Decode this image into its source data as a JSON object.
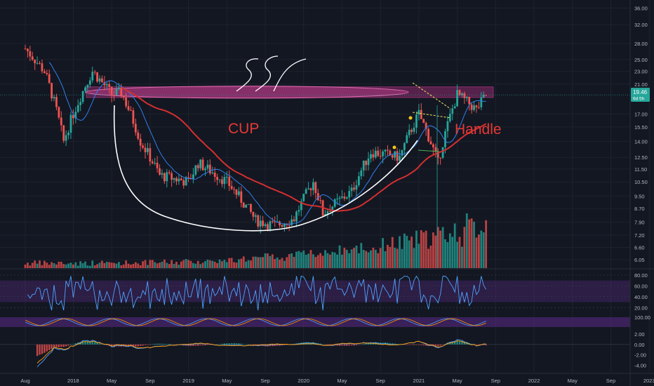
{
  "colors": {
    "background": "#131722",
    "grid": "#1e222d",
    "up": "#26a69a",
    "down": "#ef5350",
    "resistance_zone": "#8e2a6b",
    "ma_fast": "#2f80ed",
    "ma_slow": "#d32f2f",
    "annotation_white": "#ffffff",
    "annotation_red": "#e53935",
    "handle_lines": "#f5e663",
    "indicator_band": "#5b2a86",
    "last_price_bg": "#26a69a"
  },
  "annotations": {
    "cup_label": "CUP",
    "handle_label": "Handle"
  },
  "price_tag": {
    "price": "19.46",
    "countdown": "6d 5h"
  },
  "chart_data": [
    {
      "type": "candlestick",
      "panel": "price",
      "x": [
        "Aug",
        "2018",
        "May",
        "Sep",
        "2019",
        "May",
        "Sep",
        "2020",
        "May",
        "Sep",
        "2021",
        "May",
        "Sep",
        "2022",
        "May",
        "Sep",
        "2023",
        "May"
      ],
      "ylim": [
        5.7,
        37
      ],
      "scale": "log",
      "y_ticks": [
        "36.00",
        "32.00",
        "28.00",
        "25.00",
        "23.00",
        "21.00",
        "17.00",
        "15.50",
        "14.00",
        "12.50",
        "11.50",
        "10.50",
        "9.50",
        "8.70",
        "7.90",
        "7.20",
        "6.60",
        "6.05"
      ],
      "approx_close_path": [
        {
          "date": "2017-08",
          "value": 27
        },
        {
          "date": "2017-10",
          "value": 23
        },
        {
          "date": "2017-12",
          "value": 14
        },
        {
          "date": "2018-02",
          "value": 20
        },
        {
          "date": "2018-03",
          "value": 23
        },
        {
          "date": "2018-05",
          "value": 19.5
        },
        {
          "date": "2018-06",
          "value": 19.8
        },
        {
          "date": "2018-08",
          "value": 14
        },
        {
          "date": "2018-10",
          "value": 11
        },
        {
          "date": "2019-01",
          "value": 10.5
        },
        {
          "date": "2019-02",
          "value": 12
        },
        {
          "date": "2019-05",
          "value": 10.5
        },
        {
          "date": "2019-08",
          "value": 8
        },
        {
          "date": "2019-10",
          "value": 7.7
        },
        {
          "date": "2019-12",
          "value": 8.1
        },
        {
          "date": "2020-02",
          "value": 10.5
        },
        {
          "date": "2020-03",
          "value": 8.4
        },
        {
          "date": "2020-06",
          "value": 9.8
        },
        {
          "date": "2020-08",
          "value": 13
        },
        {
          "date": "2020-11",
          "value": 12.5
        },
        {
          "date": "2021-01",
          "value": 17
        },
        {
          "date": "2021-03",
          "value": 12
        },
        {
          "date": "2021-05",
          "value": 19.5
        },
        {
          "date": "2021-07",
          "value": 17.5
        },
        {
          "date": "2021-08",
          "value": 19.46
        }
      ],
      "resistance_zone": [
        19.1,
        20.6
      ],
      "volume_bars": "bottom of price panel"
    },
    {
      "type": "line",
      "panel": "oscillator",
      "y_ticks": [
        "80.00",
        "60.00",
        "40.00",
        "20.00"
      ],
      "ylim": [
        10,
        85
      ],
      "band": [
        30,
        70
      ]
    },
    {
      "type": "line",
      "panel": "stochastic",
      "y_ticks": [
        "100.00"
      ],
      "ylim": [
        0,
        110
      ]
    },
    {
      "type": "histogram",
      "panel": "macd",
      "y_ticks": [
        "2.00",
        "0.00",
        "-2.00",
        "-4.00"
      ],
      "ylim": [
        -5,
        2.8
      ]
    }
  ]
}
